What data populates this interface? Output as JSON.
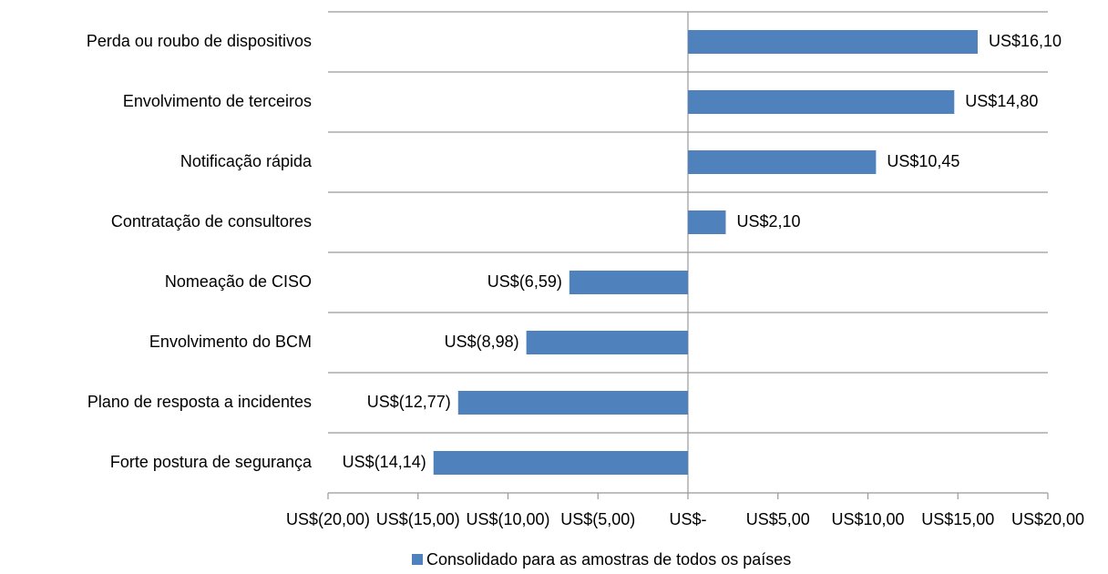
{
  "chart_data": {
    "type": "bar",
    "orientation": "horizontal",
    "categories": [
      "Perda ou roubo de dispositivos",
      "Envolvimento de terceiros",
      "Notificação rápida",
      "Contratação de consultores",
      "Nomeação de CISO",
      "Envolvimento do BCM",
      "Plano de resposta a incidentes",
      "Forte postura de segurança"
    ],
    "series": [
      {
        "name": "Consolidado para as amostras de todos os países",
        "color": "#4f81bd",
        "values": [
          16.1,
          14.8,
          10.45,
          2.1,
          -6.59,
          -8.98,
          -12.77,
          -14.14
        ],
        "value_labels": [
          "US$16,10",
          "US$14,80",
          "US$10,45",
          "US$2,10",
          "US$(6,59)",
          "US$(8,98)",
          "US$(12,77)",
          "US$(14,14)"
        ]
      }
    ],
    "xlim": [
      -20,
      20
    ],
    "xticks": [
      {
        "value": -20,
        "label": "US$(20,00)"
      },
      {
        "value": -15,
        "label": "US$(15,00)"
      },
      {
        "value": -10,
        "label": "US$(10,00)"
      },
      {
        "value": -5,
        "label": "US$(5,00)"
      },
      {
        "value": 0,
        "label": "US$-"
      },
      {
        "value": 5,
        "label": "US$5,00"
      },
      {
        "value": 10,
        "label": "US$10,00"
      },
      {
        "value": 15,
        "label": "US$15,00"
      },
      {
        "value": 20,
        "label": "US$20,00"
      }
    ],
    "grid": true,
    "legend": "bottom"
  }
}
